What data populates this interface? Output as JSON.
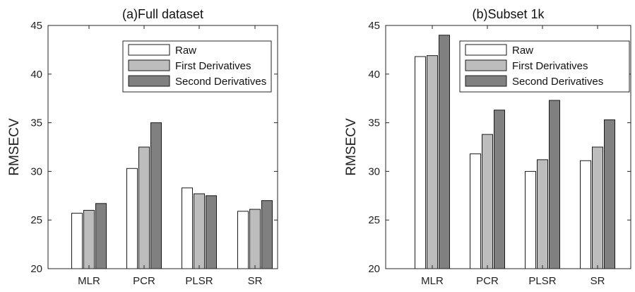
{
  "chart_data": [
    {
      "type": "bar",
      "title": "(a)Full dataset",
      "xlabel": "",
      "ylabel": "RMSECV",
      "ylim": [
        20,
        45
      ],
      "yticks": [
        20,
        25,
        30,
        35,
        40,
        45
      ],
      "categories": [
        "MLR",
        "PCR",
        "PLSR",
        "SR"
      ],
      "legend_position": "top-right",
      "series": [
        {
          "name": "Raw",
          "color": "#ffffff",
          "values": [
            25.7,
            30.3,
            28.3,
            25.9
          ]
        },
        {
          "name": "First Derivatives",
          "color": "#bdbdbd",
          "values": [
            26.0,
            32.5,
            27.7,
            26.1
          ]
        },
        {
          "name": "Second Derivatives",
          "color": "#808080",
          "values": [
            26.7,
            35.0,
            27.5,
            27.0
          ]
        }
      ]
    },
    {
      "type": "bar",
      "title": "(b)Subset 1k",
      "xlabel": "",
      "ylabel": "RMSECV",
      "ylim": [
        20,
        45
      ],
      "yticks": [
        20,
        25,
        30,
        35,
        40,
        45
      ],
      "categories": [
        "MLR",
        "PCR",
        "PLSR",
        "SR"
      ],
      "legend_position": "top-right",
      "series": [
        {
          "name": "Raw",
          "color": "#ffffff",
          "values": [
            41.8,
            31.8,
            30.0,
            31.1
          ]
        },
        {
          "name": "First Derivatives",
          "color": "#bdbdbd",
          "values": [
            41.9,
            33.8,
            31.2,
            32.5
          ]
        },
        {
          "name": "Second Derivatives",
          "color": "#808080",
          "values": [
            44.0,
            36.3,
            37.3,
            35.3
          ]
        }
      ]
    }
  ]
}
